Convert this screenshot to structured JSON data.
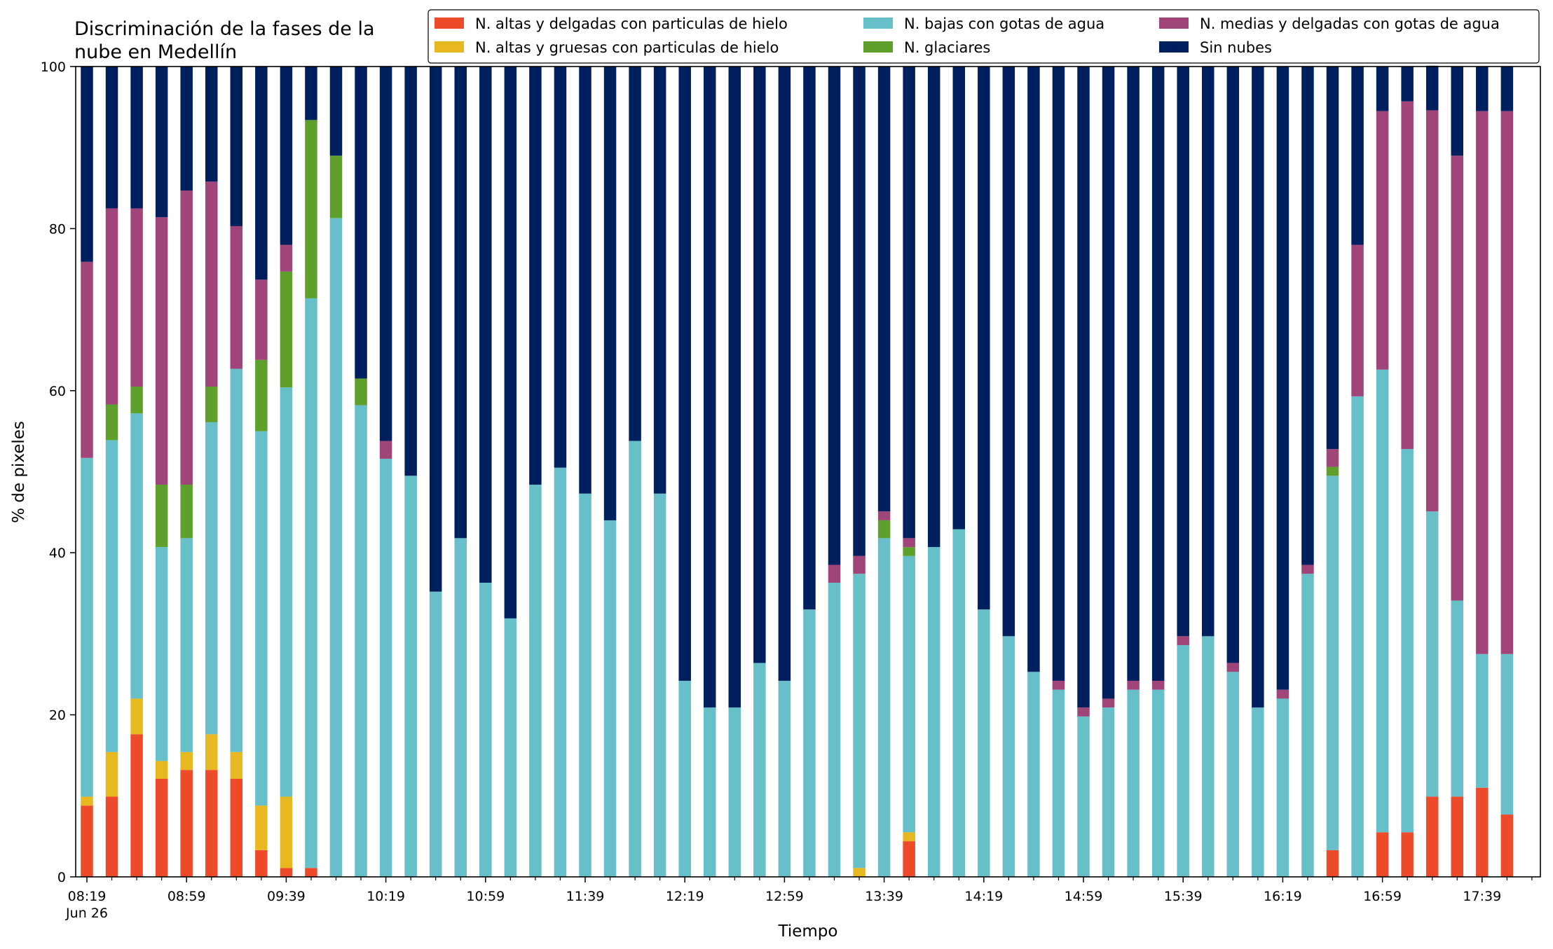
{
  "chart_data": {
    "type": "bar",
    "stacked": true,
    "title": "Discriminación de la fases de la\nnube en Medellín",
    "xlabel": "Tiempo",
    "ylabel": "% de pixeles",
    "ylim": [
      0,
      100
    ],
    "yticks": [
      0,
      20,
      40,
      60,
      80,
      100
    ],
    "grid": false,
    "legend_position": "top-right",
    "legend_columns": 3,
    "x_tick_labels": [
      "08:19",
      "08:59",
      "09:39",
      "10:19",
      "10:59",
      "11:39",
      "12:19",
      "12:59",
      "13:39",
      "14:19",
      "14:59",
      "15:39",
      "16:19",
      "16:59",
      "17:39"
    ],
    "x_tick_sublabel": "Jun 26",
    "x_label_every": 4,
    "categories": [
      "08:19",
      "08:29",
      "08:39",
      "08:49",
      "08:59",
      "09:09",
      "09:19",
      "09:29",
      "09:39",
      "09:49",
      "09:59",
      "10:09",
      "10:19",
      "10:29",
      "10:39",
      "10:49",
      "10:59",
      "11:09",
      "11:19",
      "11:29",
      "11:39",
      "11:49",
      "11:59",
      "12:09",
      "12:19",
      "12:29",
      "12:39",
      "12:49",
      "12:59",
      "13:09",
      "13:19",
      "13:29",
      "13:39",
      "13:49",
      "13:59",
      "14:09",
      "14:19",
      "14:29",
      "14:39",
      "14:49",
      "14:59",
      "15:09",
      "15:19",
      "15:29",
      "15:39",
      "15:49",
      "15:59",
      "16:09",
      "16:19",
      "16:29",
      "16:39",
      "16:49",
      "16:59",
      "17:09",
      "17:19",
      "17:29",
      "17:39",
      "17:49"
    ],
    "series": [
      {
        "name": "N. altas y delgadas con particulas de hielo",
        "color": "#ee4b2b",
        "values": [
          8.8,
          9.9,
          17.6,
          12.1,
          13.2,
          13.2,
          12.1,
          3.3,
          1.1,
          1.1,
          0,
          0,
          0,
          0,
          0,
          0,
          0,
          0,
          0,
          0,
          0,
          0,
          0,
          0,
          0,
          0,
          0,
          0,
          0,
          0,
          0,
          0,
          0,
          4.4,
          0,
          0,
          0,
          0,
          0,
          0,
          0,
          0,
          0,
          0,
          0,
          0,
          0,
          0,
          0,
          0,
          3.3,
          0,
          5.5,
          5.5,
          9.9,
          9.9,
          11.0,
          7.7
        ]
      },
      {
        "name": "N. altas y gruesas con particulas de hielo",
        "color": "#e8b820",
        "values": [
          1.1,
          5.5,
          4.4,
          2.2,
          2.2,
          4.4,
          3.3,
          5.5,
          8.8,
          0,
          0,
          0,
          0,
          0,
          0,
          0,
          0,
          0,
          0,
          0,
          0,
          0,
          0,
          0,
          0,
          0,
          0,
          0,
          0,
          0,
          0,
          1.1,
          0,
          1.1,
          0,
          0,
          0,
          0,
          0,
          0,
          0,
          0,
          0,
          0,
          0,
          0,
          0,
          0,
          0,
          0,
          0,
          0,
          0,
          0,
          0,
          0,
          0,
          0
        ]
      },
      {
        "name": "N. bajas con gotas de agua",
        "color": "#67bfca",
        "values": [
          41.8,
          38.5,
          35.2,
          26.4,
          26.4,
          38.5,
          47.3,
          46.2,
          50.5,
          70.3,
          81.3,
          58.2,
          51.6,
          49.5,
          35.2,
          41.8,
          36.3,
          31.9,
          48.4,
          50.5,
          47.3,
          44.0,
          53.8,
          47.3,
          24.2,
          20.9,
          20.9,
          26.4,
          24.2,
          33.0,
          36.3,
          36.3,
          41.8,
          34.1,
          40.7,
          42.9,
          33.0,
          29.7,
          25.3,
          23.1,
          19.8,
          20.9,
          23.1,
          23.1,
          28.6,
          29.7,
          25.3,
          20.9,
          22.0,
          37.4,
          46.2,
          59.3,
          57.1,
          47.3,
          35.2,
          24.2,
          16.5,
          19.8
        ]
      },
      {
        "name": "N. glaciares",
        "color": "#5f9f2c",
        "values": [
          0,
          4.4,
          3.3,
          7.7,
          6.6,
          4.4,
          0,
          8.8,
          14.3,
          22.0,
          7.7,
          3.3,
          0,
          0,
          0,
          0,
          0,
          0,
          0,
          0,
          0,
          0,
          0,
          0,
          0,
          0,
          0,
          0,
          0,
          0,
          0,
          0,
          2.2,
          1.1,
          0,
          0,
          0,
          0,
          0,
          0,
          0,
          0,
          0,
          0,
          0,
          0,
          0,
          0,
          0,
          0,
          1.1,
          0,
          0,
          0,
          0,
          0,
          0,
          0
        ]
      },
      {
        "name": "N. medias y delgadas con gotas de agua",
        "color": "#a0447a",
        "values": [
          24.2,
          24.2,
          22.0,
          33.0,
          36.3,
          25.3,
          17.6,
          9.9,
          3.3,
          0,
          0,
          0,
          2.2,
          0,
          0,
          0,
          0,
          0,
          0,
          0,
          0,
          0,
          0,
          0,
          0,
          0,
          0,
          0,
          0,
          0,
          2.2,
          2.2,
          1.1,
          1.1,
          0,
          0,
          0,
          0,
          0,
          1.1,
          1.1,
          1.1,
          1.1,
          1.1,
          1.1,
          0,
          1.1,
          0,
          1.1,
          1.1,
          2.2,
          18.7,
          31.9,
          42.9,
          49.5,
          54.9,
          67.0,
          67.0
        ]
      },
      {
        "name": "Sin nubes",
        "color": "#001f5f",
        "values": [
          24.1,
          17.5,
          17.5,
          18.6,
          15.3,
          14.2,
          19.7,
          26.3,
          22.0,
          6.6,
          11.0,
          38.5,
          46.2,
          50.5,
          64.8,
          58.2,
          63.7,
          68.1,
          51.6,
          49.5,
          52.7,
          56.0,
          46.2,
          52.7,
          75.8,
          79.1,
          79.1,
          73.6,
          75.8,
          67.0,
          61.5,
          60.4,
          54.9,
          58.2,
          59.3,
          57.1,
          67.0,
          70.3,
          74.7,
          75.8,
          79.1,
          78.0,
          75.8,
          75.8,
          70.3,
          70.3,
          73.6,
          79.1,
          76.9,
          61.5,
          47.2,
          22.0,
          5.5,
          4.3,
          5.5,
          11.0,
          5.5,
          5.5
        ]
      }
    ]
  }
}
